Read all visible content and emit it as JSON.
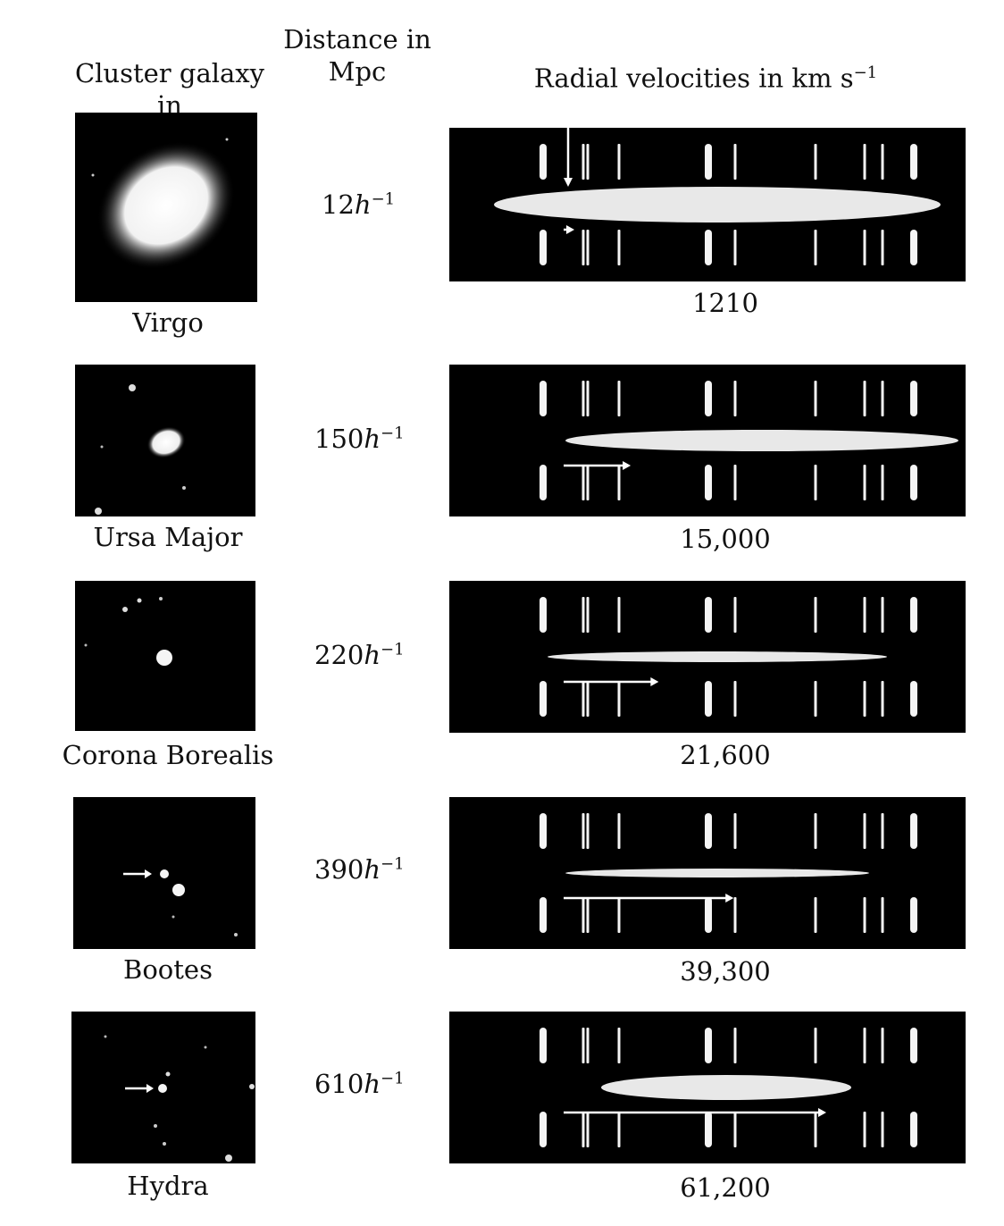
{
  "headers": {
    "col1": "Cluster galaxy in",
    "col2_line1": "Distance in",
    "col2_line2": "Mpc",
    "col3_prefix": "Radial velocities in km s",
    "col3_sup": "−1"
  },
  "rows": [
    {
      "cluster": "Virgo",
      "distance_value": "12",
      "distance_unit": "h",
      "distance_exp": "−1",
      "velocity": "1210",
      "redshift_km_s": 1210
    },
    {
      "cluster": "Ursa Major",
      "distance_value": "150",
      "distance_unit": "h",
      "distance_exp": "−1",
      "velocity": "15,000",
      "redshift_km_s": 15000
    },
    {
      "cluster": "Corona Borealis",
      "distance_value": "220",
      "distance_unit": "h",
      "distance_exp": "−1",
      "velocity": "21,600",
      "redshift_km_s": 21600
    },
    {
      "cluster": "Bootes",
      "distance_value": "390",
      "distance_unit": "h",
      "distance_exp": "−1",
      "velocity": "39,300",
      "redshift_km_s": 39300
    },
    {
      "cluster": "Hydra",
      "distance_value": "610",
      "distance_unit": "h",
      "distance_exp": "−1",
      "velocity": "61,200",
      "redshift_km_s": 61200
    }
  ]
}
